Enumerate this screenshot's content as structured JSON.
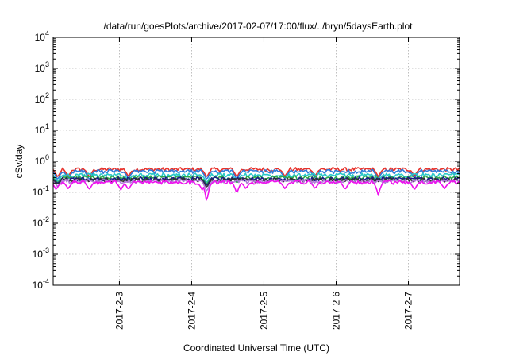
{
  "chart_data": {
    "type": "line",
    "title": "/data/run/goesPlots/archive/2017-02-07/17:00/flux/../bryn/5daysEarth.plot",
    "xlabel": "Coordinated Universal Time (UTC)",
    "ylabel": "cSv/day",
    "x_range": [
      "2017-02-02T02:00",
      "2017-02-07T17:00"
    ],
    "x_ticks": [
      {
        "label": "2017-2-3",
        "date": "2017-02-03"
      },
      {
        "label": "2017-2-4",
        "date": "2017-02-04"
      },
      {
        "label": "2017-2-5",
        "date": "2017-02-05"
      },
      {
        "label": "2017-2-6",
        "date": "2017-02-06"
      },
      {
        "label": "2017-2-7",
        "date": "2017-02-07"
      }
    ],
    "y_scale": "log",
    "ylim": [
      0.0001,
      10000
    ],
    "y_ticks": [
      {
        "value": 0.0001,
        "base": "10",
        "exp": "-4"
      },
      {
        "value": 0.001,
        "base": "10",
        "exp": "-3"
      },
      {
        "value": 0.01,
        "base": "10",
        "exp": "-2"
      },
      {
        "value": 0.1,
        "base": "10",
        "exp": "-1"
      },
      {
        "value": 1,
        "base": "10",
        "exp": "0"
      },
      {
        "value": 10,
        "base": "10",
        "exp": "1"
      },
      {
        "value": 100,
        "base": "10",
        "exp": "2"
      },
      {
        "value": 1000,
        "base": "10",
        "exp": "3"
      },
      {
        "value": 10000,
        "base": "10",
        "exp": "4"
      }
    ],
    "grid": true,
    "legend": "none",
    "series": [
      {
        "color": "#e8322b",
        "base": 0.55,
        "dips": [
          {
            "date": "2017-02-02T03:30",
            "value": 0.3
          },
          {
            "date": "2017-02-02T07:00",
            "value": 0.32
          },
          {
            "date": "2017-02-02T14:00",
            "value": 0.3
          },
          {
            "date": "2017-02-03T03:00",
            "value": 0.32
          },
          {
            "date": "2017-02-04T05:00",
            "value": 0.3
          },
          {
            "date": "2017-02-04T15:00",
            "value": 0.3
          },
          {
            "date": "2017-02-05T07:00",
            "value": 0.32
          },
          {
            "date": "2017-02-05T17:00",
            "value": 0.33
          },
          {
            "date": "2017-02-06T14:00",
            "value": 0.32
          },
          {
            "date": "2017-02-07T02:00",
            "value": 0.33
          }
        ]
      },
      {
        "color": "#2f7bd9",
        "base": 0.47,
        "dips": [
          {
            "date": "2017-02-02T03:30",
            "value": 0.25
          },
          {
            "date": "2017-02-02T07:00",
            "value": 0.27
          },
          {
            "date": "2017-02-02T14:00",
            "value": 0.25
          },
          {
            "date": "2017-02-03T03:00",
            "value": 0.27
          },
          {
            "date": "2017-02-04T05:00",
            "value": 0.25
          },
          {
            "date": "2017-02-04T15:00",
            "value": 0.25
          },
          {
            "date": "2017-02-05T07:00",
            "value": 0.27
          },
          {
            "date": "2017-02-05T17:00",
            "value": 0.28
          },
          {
            "date": "2017-02-06T14:00",
            "value": 0.27
          },
          {
            "date": "2017-02-07T02:00",
            "value": 0.28
          }
        ]
      },
      {
        "color": "#28c8c8",
        "base": 0.36,
        "dips": [
          {
            "date": "2017-02-02T03:30",
            "value": 0.22
          },
          {
            "date": "2017-02-03T03:00",
            "value": 0.24
          },
          {
            "date": "2017-02-04T05:00",
            "value": 0.2
          },
          {
            "date": "2017-02-04T15:00",
            "value": 0.22
          },
          {
            "date": "2017-02-06T14:00",
            "value": 0.24
          }
        ]
      },
      {
        "color": "#2aa84a",
        "base": 0.3,
        "dips": [
          {
            "date": "2017-02-02T03:30",
            "value": 0.2
          },
          {
            "date": "2017-02-04T05:00",
            "value": 0.18
          },
          {
            "date": "2017-02-04T15:00",
            "value": 0.2
          }
        ]
      },
      {
        "color": "#1a1a8c",
        "base": 0.27,
        "dips": [
          {
            "date": "2017-02-02T03:30",
            "value": 0.19
          },
          {
            "date": "2017-02-04T05:00",
            "value": 0.16
          }
        ]
      },
      {
        "color": "#333333",
        "base": 0.25,
        "dips": [
          {
            "date": "2017-02-02T03:30",
            "value": 0.18
          },
          {
            "date": "2017-02-04T05:00",
            "value": 0.14
          }
        ]
      },
      {
        "color": "#b07ad8",
        "base": 0.23,
        "dips": [
          {
            "date": "2017-02-02T03:30",
            "value": 0.15
          },
          {
            "date": "2017-02-04T05:00",
            "value": 0.1
          }
        ]
      },
      {
        "color": "#ee11ee",
        "base": 0.21,
        "dips": [
          {
            "date": "2017-02-02T03:00",
            "value": 0.12
          },
          {
            "date": "2017-02-02T07:00",
            "value": 0.13
          },
          {
            "date": "2017-02-02T14:00",
            "value": 0.12
          },
          {
            "date": "2017-02-03T00:30",
            "value": 0.12
          },
          {
            "date": "2017-02-03T03:00",
            "value": 0.12
          },
          {
            "date": "2017-02-04T03:30",
            "value": 0.12
          },
          {
            "date": "2017-02-04T05:00",
            "value": 0.04
          },
          {
            "date": "2017-02-04T15:00",
            "value": 0.09
          },
          {
            "date": "2017-02-04T18:00",
            "value": 0.13
          },
          {
            "date": "2017-02-05T07:00",
            "value": 0.13
          },
          {
            "date": "2017-02-05T17:00",
            "value": 0.13
          },
          {
            "date": "2017-02-06T03:00",
            "value": 0.12
          },
          {
            "date": "2017-02-06T14:00",
            "value": 0.08
          },
          {
            "date": "2017-02-07T02:00",
            "value": 0.12
          },
          {
            "date": "2017-02-07T12:00",
            "value": 0.13
          }
        ]
      }
    ]
  }
}
